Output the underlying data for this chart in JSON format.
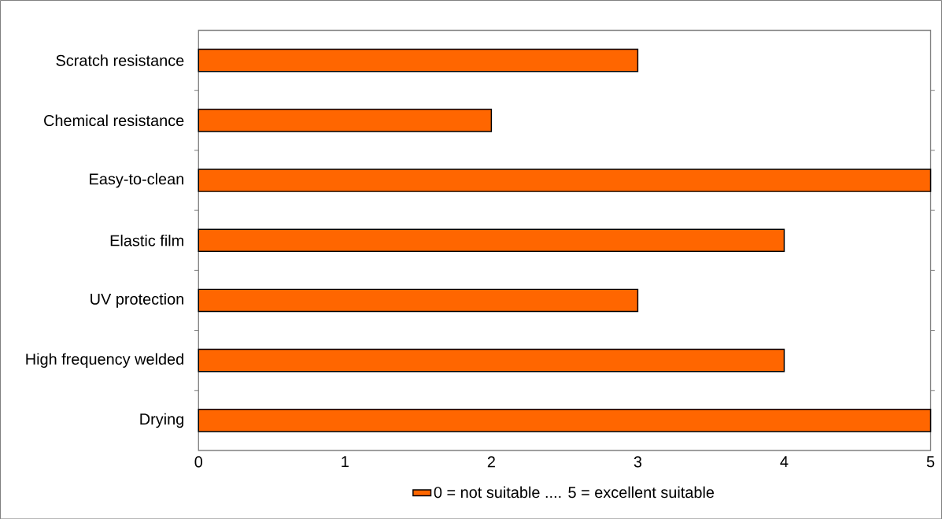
{
  "chart_data": {
    "type": "bar",
    "orientation": "horizontal",
    "categories": [
      "Scratch resistance",
      "Chemical resistance",
      "Easy-to-clean",
      "Elastic film",
      "UV protection",
      "High frequency welded",
      "Drying"
    ],
    "series": [
      {
        "name": "0 = not suitable .... 5 = excellent suitable",
        "color": "#ff6600",
        "values": [
          3,
          2,
          5,
          4,
          3,
          4,
          5
        ]
      }
    ],
    "xlim": [
      0,
      5
    ],
    "xticks": [
      0,
      1,
      2,
      3,
      4,
      5
    ],
    "legend": "bottom"
  }
}
